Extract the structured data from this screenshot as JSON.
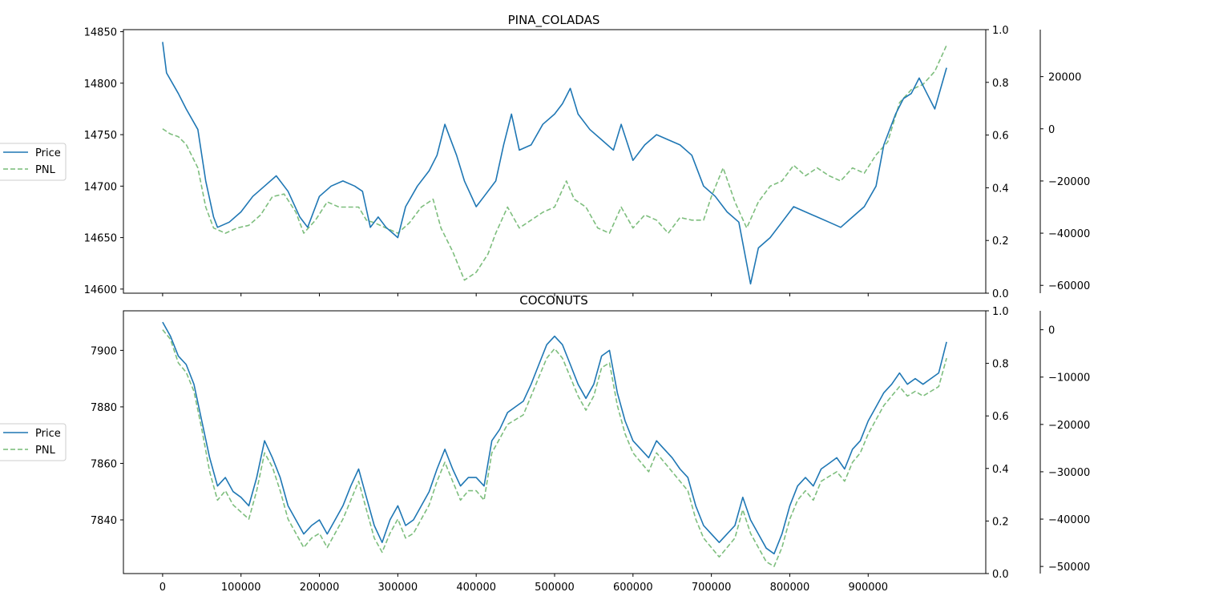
{
  "chart_data": [
    {
      "type": "line",
      "title": "PINA_COLADAS",
      "xlim": [
        -50000,
        1050000
      ],
      "ylim_price": [
        14596,
        14852
      ],
      "price_yticks": [
        14600,
        14650,
        14700,
        14750,
        14800,
        14850
      ],
      "twin_yticks": [
        "0.0",
        "0.2",
        "0.4",
        "0.6",
        "0.8",
        "1.0"
      ],
      "ylim_pnl": [
        -63000,
        38000
      ],
      "pnl_yticks": [
        {
          "v": 20000,
          "label": "20000"
        },
        {
          "v": 0,
          "label": "0"
        },
        {
          "v": -20000,
          "label": "−20000"
        },
        {
          "v": -40000,
          "label": "−40000"
        },
        {
          "v": -60000,
          "label": "−60000"
        }
      ],
      "legend": {
        "placement": "left",
        "entries": [
          "Price",
          "PNL"
        ]
      },
      "series": [
        {
          "name": "Price",
          "color": "#1f77b4",
          "style": "solid",
          "x": [
            0,
            5000,
            20000,
            30000,
            45000,
            55000,
            65000,
            70000,
            85000,
            100000,
            115000,
            130000,
            145000,
            160000,
            175000,
            185000,
            200000,
            215000,
            230000,
            245000,
            255000,
            265000,
            275000,
            285000,
            300000,
            310000,
            325000,
            340000,
            350000,
            360000,
            375000,
            385000,
            400000,
            410000,
            425000,
            435000,
            445000,
            455000,
            470000,
            485000,
            500000,
            510000,
            520000,
            530000,
            545000,
            560000,
            575000,
            585000,
            600000,
            615000,
            630000,
            645000,
            660000,
            675000,
            690000,
            705000,
            720000,
            735000,
            750000,
            760000,
            775000,
            790000,
            805000,
            820000,
            835000,
            850000,
            865000,
            880000,
            895000,
            910000,
            920000,
            935000,
            945000,
            955000,
            965000,
            975000,
            985000,
            1000000
          ],
          "y": [
            14840,
            14810,
            14790,
            14775,
            14755,
            14705,
            14670,
            14660,
            14665,
            14675,
            14690,
            14700,
            14710,
            14695,
            14670,
            14660,
            14690,
            14700,
            14705,
            14700,
            14695,
            14660,
            14670,
            14660,
            14650,
            14680,
            14700,
            14715,
            14730,
            14760,
            14730,
            14705,
            14680,
            14690,
            14705,
            14740,
            14770,
            14735,
            14740,
            14760,
            14770,
            14780,
            14795,
            14770,
            14755,
            14745,
            14735,
            14760,
            14725,
            14740,
            14750,
            14745,
            14740,
            14730,
            14700,
            14690,
            14675,
            14665,
            14605,
            14640,
            14650,
            14665,
            14680,
            14675,
            14670,
            14665,
            14660,
            14670,
            14680,
            14700,
            14740,
            14770,
            14785,
            14790,
            14805,
            14790,
            14775,
            14815
          ]
        },
        {
          "name": "PNL",
          "color": "#77bb77",
          "style": "dashed",
          "x": [
            0,
            10000,
            20000,
            30000,
            45000,
            55000,
            65000,
            80000,
            95000,
            110000,
            125000,
            140000,
            155000,
            170000,
            180000,
            195000,
            210000,
            225000,
            240000,
            250000,
            260000,
            270000,
            285000,
            300000,
            315000,
            330000,
            345000,
            355000,
            370000,
            385000,
            400000,
            415000,
            425000,
            440000,
            455000,
            470000,
            485000,
            500000,
            515000,
            525000,
            540000,
            555000,
            570000,
            585000,
            600000,
            615000,
            630000,
            645000,
            660000,
            675000,
            690000,
            700000,
            715000,
            730000,
            745000,
            760000,
            775000,
            790000,
            805000,
            820000,
            835000,
            850000,
            865000,
            880000,
            895000,
            910000,
            925000,
            940000,
            955000,
            970000,
            985000,
            1000000
          ],
          "y": [
            0,
            -2000,
            -3000,
            -6000,
            -15000,
            -30000,
            -38000,
            -40000,
            -38000,
            -37000,
            -33000,
            -26000,
            -25000,
            -32000,
            -40000,
            -35000,
            -28000,
            -30000,
            -30000,
            -30000,
            -35000,
            -36000,
            -38000,
            -40000,
            -36000,
            -30000,
            -27000,
            -38000,
            -47000,
            -58000,
            -55000,
            -48000,
            -40000,
            -30000,
            -38000,
            -35000,
            -32000,
            -30000,
            -20000,
            -27000,
            -30000,
            -38000,
            -40000,
            -30000,
            -38000,
            -33000,
            -35000,
            -40000,
            -34000,
            -35000,
            -35000,
            -26000,
            -15000,
            -28000,
            -38000,
            -28000,
            -22000,
            -20000,
            -14000,
            -18000,
            -15000,
            -18000,
            -20000,
            -15000,
            -17000,
            -10000,
            -5000,
            10000,
            15000,
            17000,
            22000,
            32000
          ]
        }
      ]
    },
    {
      "type": "line",
      "title": "COCONUTS",
      "xlim": [
        -50000,
        1050000
      ],
      "xticks": [
        0,
        100000,
        200000,
        300000,
        400000,
        500000,
        600000,
        700000,
        800000,
        900000
      ],
      "ylim_price": [
        7821,
        7914
      ],
      "price_yticks": [
        7840,
        7860,
        7880,
        7900
      ],
      "twin_yticks": [
        "0.0",
        "0.2",
        "0.4",
        "0.6",
        "0.8",
        "1.0"
      ],
      "ylim_pnl": [
        -51500,
        4000
      ],
      "pnl_yticks": [
        {
          "v": 0,
          "label": "0"
        },
        {
          "v": -10000,
          "label": "−10000"
        },
        {
          "v": -20000,
          "label": "−20000"
        },
        {
          "v": -30000,
          "label": "−30000"
        },
        {
          "v": -40000,
          "label": "−40000"
        },
        {
          "v": -50000,
          "label": "−50000"
        }
      ],
      "legend": {
        "placement": "left",
        "entries": [
          "Price",
          "PNL"
        ]
      },
      "series": [
        {
          "name": "Price",
          "color": "#1f77b4",
          "style": "solid",
          "x": [
            0,
            10000,
            20000,
            30000,
            40000,
            50000,
            60000,
            70000,
            80000,
            90000,
            100000,
            110000,
            120000,
            130000,
            140000,
            150000,
            160000,
            170000,
            180000,
            190000,
            200000,
            210000,
            220000,
            230000,
            240000,
            250000,
            260000,
            270000,
            280000,
            290000,
            300000,
            310000,
            320000,
            330000,
            340000,
            350000,
            360000,
            370000,
            380000,
            390000,
            400000,
            410000,
            420000,
            430000,
            440000,
            450000,
            460000,
            470000,
            480000,
            490000,
            500000,
            510000,
            520000,
            530000,
            540000,
            550000,
            560000,
            570000,
            580000,
            590000,
            600000,
            610000,
            620000,
            630000,
            640000,
            650000,
            660000,
            670000,
            680000,
            690000,
            700000,
            710000,
            720000,
            730000,
            740000,
            750000,
            760000,
            770000,
            780000,
            790000,
            800000,
            810000,
            820000,
            830000,
            840000,
            850000,
            860000,
            870000,
            880000,
            890000,
            900000,
            910000,
            920000,
            930000,
            940000,
            950000,
            960000,
            970000,
            980000,
            990000,
            1000000
          ],
          "y": [
            7910,
            7905,
            7898,
            7895,
            7888,
            7875,
            7862,
            7852,
            7855,
            7850,
            7848,
            7845,
            7855,
            7868,
            7862,
            7855,
            7845,
            7840,
            7835,
            7838,
            7840,
            7835,
            7840,
            7845,
            7852,
            7858,
            7848,
            7838,
            7832,
            7840,
            7845,
            7838,
            7840,
            7845,
            7850,
            7858,
            7865,
            7858,
            7852,
            7855,
            7855,
            7852,
            7868,
            7872,
            7878,
            7880,
            7882,
            7888,
            7895,
            7902,
            7905,
            7902,
            7895,
            7888,
            7883,
            7888,
            7898,
            7900,
            7885,
            7875,
            7868,
            7865,
            7862,
            7868,
            7865,
            7862,
            7858,
            7855,
            7845,
            7838,
            7835,
            7832,
            7835,
            7838,
            7848,
            7840,
            7835,
            7830,
            7828,
            7835,
            7845,
            7852,
            7855,
            7852,
            7858,
            7860,
            7862,
            7858,
            7865,
            7868,
            7875,
            7880,
            7885,
            7888,
            7892,
            7888,
            7890,
            7888,
            7890,
            7892,
            7903
          ]
        },
        {
          "name": "PNL",
          "color": "#77bb77",
          "style": "dashed",
          "x": [
            0,
            10000,
            20000,
            30000,
            40000,
            50000,
            60000,
            70000,
            80000,
            90000,
            100000,
            110000,
            120000,
            130000,
            140000,
            150000,
            160000,
            170000,
            180000,
            190000,
            200000,
            210000,
            220000,
            230000,
            240000,
            250000,
            260000,
            270000,
            280000,
            290000,
            300000,
            310000,
            320000,
            330000,
            340000,
            350000,
            360000,
            370000,
            380000,
            390000,
            400000,
            410000,
            420000,
            430000,
            440000,
            450000,
            460000,
            470000,
            480000,
            490000,
            500000,
            510000,
            520000,
            530000,
            540000,
            550000,
            560000,
            570000,
            580000,
            590000,
            600000,
            610000,
            620000,
            630000,
            640000,
            650000,
            660000,
            670000,
            680000,
            690000,
            700000,
            710000,
            720000,
            730000,
            740000,
            750000,
            760000,
            770000,
            780000,
            790000,
            800000,
            810000,
            820000,
            830000,
            840000,
            850000,
            860000,
            870000,
            880000,
            890000,
            900000,
            910000,
            920000,
            930000,
            940000,
            950000,
            960000,
            970000,
            980000,
            990000,
            1000000
          ],
          "y": [
            0,
            -2000,
            -7000,
            -9000,
            -13000,
            -21000,
            -30000,
            -36000,
            -34000,
            -37000,
            -38500,
            -40000,
            -34000,
            -26000,
            -29000,
            -34000,
            -40000,
            -43000,
            -46000,
            -44000,
            -43000,
            -46000,
            -43000,
            -40000,
            -36000,
            -32000,
            -38000,
            -44000,
            -47000,
            -43000,
            -40000,
            -44000,
            -43000,
            -40000,
            -37000,
            -32000,
            -28000,
            -32000,
            -36000,
            -34000,
            -34000,
            -36000,
            -26000,
            -23000,
            -20000,
            -19000,
            -18000,
            -14000,
            -10000,
            -6000,
            -4000,
            -6000,
            -10000,
            -14000,
            -17000,
            -14000,
            -8000,
            -7000,
            -16000,
            -22000,
            -26000,
            -28000,
            -30000,
            -26000,
            -28000,
            -30000,
            -32000,
            -34000,
            -40000,
            -44000,
            -46000,
            -48000,
            -46000,
            -44000,
            -38000,
            -43000,
            -46000,
            -49000,
            -50000,
            -46000,
            -40000,
            -36000,
            -34000,
            -36000,
            -32000,
            -31000,
            -30000,
            -32000,
            -28000,
            -26000,
            -22000,
            -19000,
            -16000,
            -14000,
            -12000,
            -14000,
            -13000,
            -14000,
            -13000,
            -12000,
            -6000
          ]
        }
      ]
    }
  ]
}
